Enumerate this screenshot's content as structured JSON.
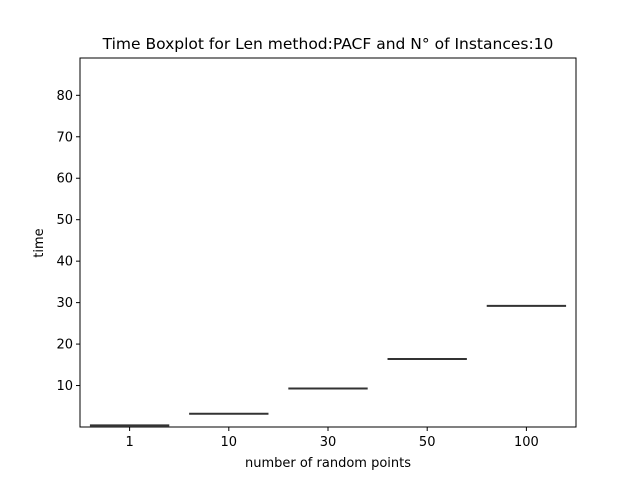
{
  "chart_data": {
    "type": "boxplot",
    "title": "Time Boxplot for Len method:PACF and N° of Instances:10",
    "xlabel": "number of random points",
    "ylabel": "time",
    "categories": [
      "1",
      "10",
      "30",
      "50",
      "100"
    ],
    "values": [
      0.4,
      3.2,
      9.3,
      16.4,
      29.2
    ],
    "ylim": [
      0,
      89
    ],
    "yticks": [
      10,
      20,
      30,
      40,
      50,
      60,
      70,
      80
    ],
    "grid": false,
    "legend": "none",
    "colors": {
      "box": "#333333",
      "axes": "#000000",
      "background": "#ffffff"
    }
  }
}
